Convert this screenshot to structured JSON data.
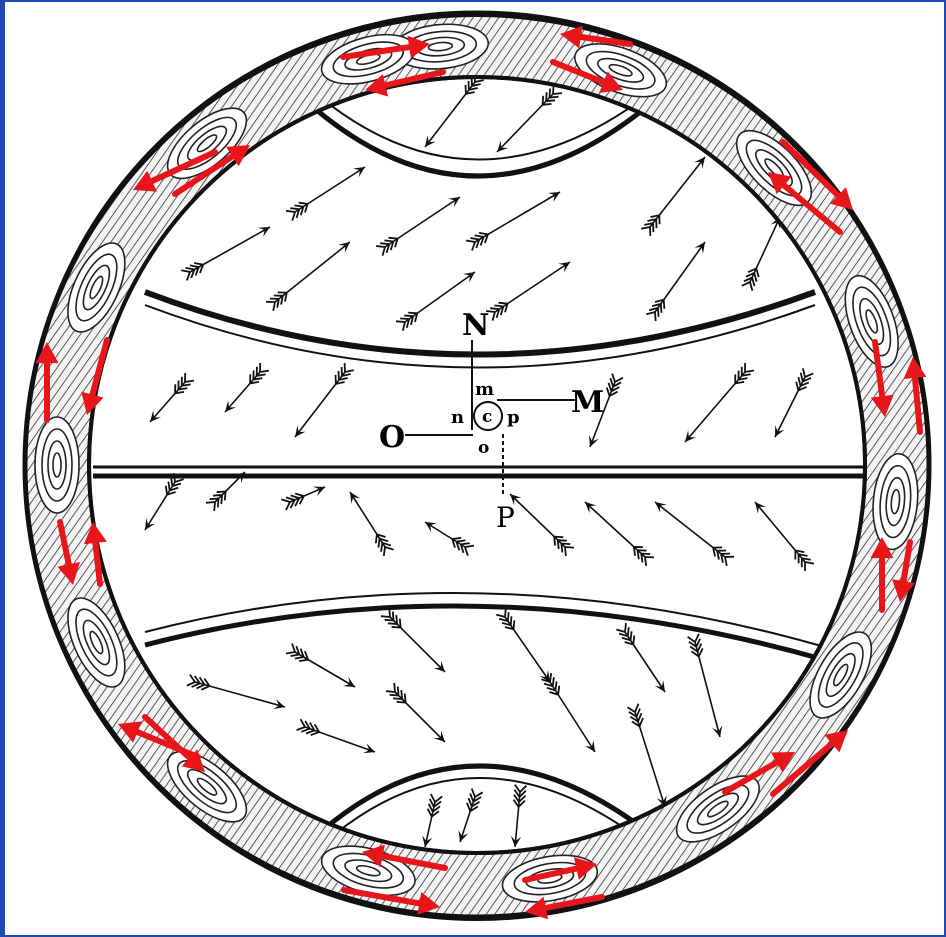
{
  "labels": {
    "N": "N",
    "M": "M",
    "O": "O",
    "P": "P",
    "m": "m",
    "n": "n",
    "c": "c",
    "o": "o",
    "p": "p"
  },
  "colors": {
    "frame": "#1f49b0",
    "ink": "#111111",
    "circulation_arrow": "#e8161b",
    "background": "#ffffff"
  }
}
